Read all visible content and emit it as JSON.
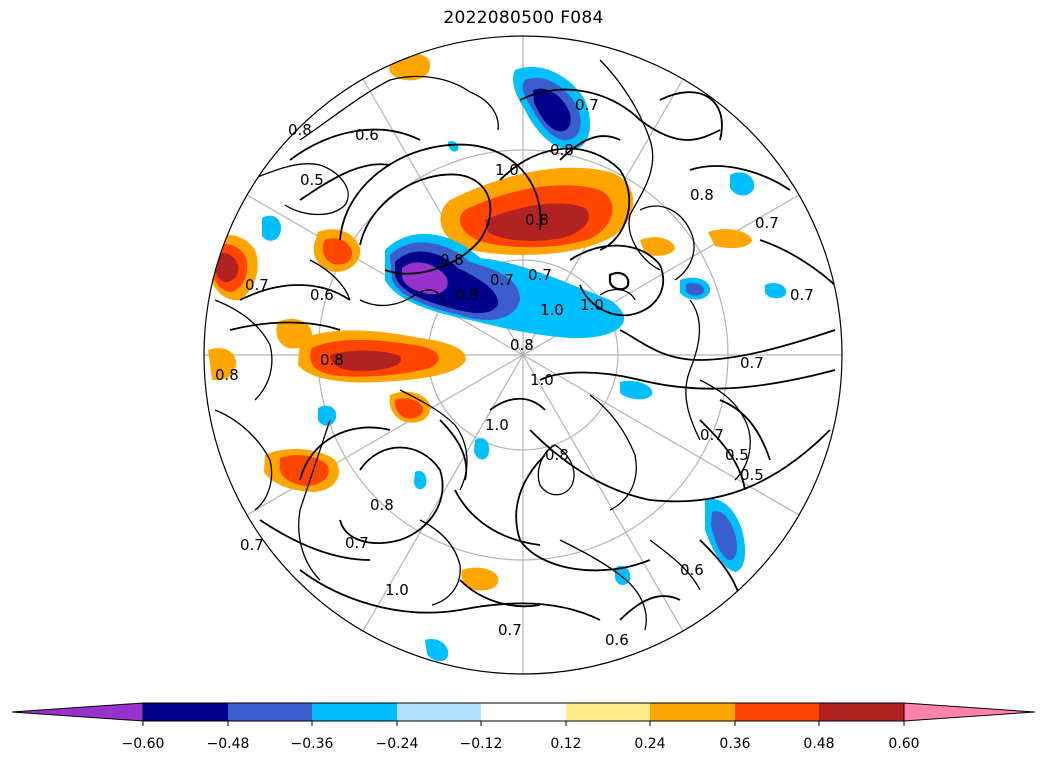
{
  "map": {
    "title": "2022080500 F084",
    "projection": "north-polar-stereographic",
    "contour_labels": [
      "0.8",
      "0.6",
      "0.8",
      "1.0",
      "0.5",
      "0.7",
      "0.8",
      "0.7",
      "0.7",
      "0.8",
      "0.7",
      "0.6",
      "0.8",
      "0.8",
      "1.0",
      "0.8",
      "0.7",
      "0.7",
      "1.0",
      "0.8",
      "0.7",
      "1.0",
      "0.7",
      "0.8",
      "0.5",
      "0.6",
      "0.8",
      "1.0",
      "0.7",
      "0.8",
      "0.7",
      "1.0",
      "0.6",
      "0.5",
      "0.7"
    ]
  },
  "colorbar": {
    "ticks": [
      "−0.60",
      "−0.48",
      "−0.36",
      "−0.24",
      "−0.12",
      "0.12",
      "0.24",
      "0.36",
      "0.48",
      "0.60"
    ],
    "colors": [
      "#9932cc",
      "#00008b",
      "#3a5fcd",
      "#00bfff",
      "#b0e2ff",
      "#ffffff",
      "#ffec8b",
      "#ffa500",
      "#ff4500",
      "#b22222",
      "#ff82ab"
    ],
    "extend": "both"
  },
  "colors": {
    "grid": "#b4b4b4",
    "coast": "#000000",
    "contour": "#000000"
  }
}
